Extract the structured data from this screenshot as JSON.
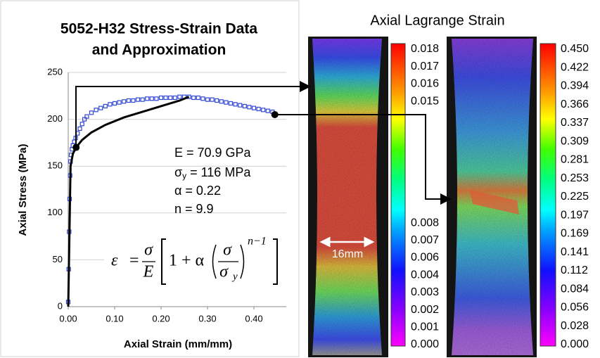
{
  "chart_data": {
    "type": "scatter",
    "title": [
      "5052-H32 Stress-Strain Data",
      "and Approximation"
    ],
    "x_label": "Axial Strain (mm/mm)",
    "y_label": "Axial Stress (MPa)",
    "xlim": [
      0,
      0.47
    ],
    "ylim": [
      0,
      250
    ],
    "xticks": [
      {
        "value": 0,
        "label": "0.00"
      },
      {
        "value": 0.1,
        "label": "0.10"
      },
      {
        "value": 0.2,
        "label": "0.20"
      },
      {
        "value": 0.3,
        "label": "0.30"
      },
      {
        "value": 0.4,
        "label": "0.40"
      }
    ],
    "yticks": [
      0,
      50,
      100,
      150,
      200,
      250
    ],
    "grid": true,
    "series": [
      {
        "kind": "markers",
        "color": "#2f45d6",
        "x": [
          0.0,
          0.001,
          0.002,
          0.003,
          0.004,
          0.005,
          0.006,
          0.008,
          0.01,
          0.013,
          0.016,
          0.02,
          0.025,
          0.03,
          0.035,
          0.04,
          0.05,
          0.06,
          0.07,
          0.08,
          0.09,
          0.1,
          0.11,
          0.12,
          0.13,
          0.14,
          0.15,
          0.16,
          0.17,
          0.18,
          0.19,
          0.2,
          0.21,
          0.22,
          0.23,
          0.24,
          0.25,
          0.26,
          0.27,
          0.28,
          0.29,
          0.3,
          0.31,
          0.32,
          0.33,
          0.34,
          0.35,
          0.36,
          0.37,
          0.38,
          0.39,
          0.4,
          0.41,
          0.42,
          0.43,
          0.44
        ],
        "values": [
          5,
          40,
          80,
          115,
          140,
          155,
          162,
          168,
          172,
          176,
          180,
          185,
          190,
          195,
          200,
          203,
          207,
          210,
          212,
          214,
          216,
          217,
          218,
          219,
          220,
          220,
          221,
          221,
          222,
          222,
          222,
          223,
          223,
          223,
          223,
          224,
          224,
          224,
          223,
          223,
          222,
          221,
          221,
          220,
          219,
          218,
          217,
          216,
          215,
          214,
          213,
          212,
          211,
          210,
          209,
          208
        ]
      },
      {
        "kind": "line",
        "color": "#000000",
        "x": [
          0,
          0.005,
          0.01,
          0.017,
          0.03,
          0.05,
          0.08,
          0.12,
          0.16,
          0.2,
          0.24,
          0.26
        ],
        "values": [
          0,
          150,
          163,
          170,
          178,
          186,
          194,
          202,
          208,
          214,
          220,
          224
        ]
      },
      {
        "kind": "dots",
        "color": "#000000",
        "x": [
          0.017,
          0.445
        ],
        "values": [
          170,
          205
        ]
      }
    ],
    "annotations": {
      "modulus": "E = 70.9 GPa",
      "yield": [
        "σ",
        "y",
        " = 116 MPa"
      ],
      "alpha": "α = 0.22",
      "n": "n = 9.9",
      "equation": [
        "ε",
        "=",
        "σ",
        "E",
        "1 + α",
        "σ",
        "σ",
        "y",
        "n−1"
      ]
    }
  },
  "images": {
    "title": "Axial Lagrange Strain",
    "width_label": "16mm",
    "colorbar_left": [
      "0.018",
      "0.017",
      "0.016",
      "0.015",
      null,
      null,
      null,
      null,
      null,
      null,
      "0.008",
      "0.007",
      "0.006",
      "0.004",
      "0.003",
      "0.002",
      "0.001",
      "0.000"
    ],
    "colorbar_right": [
      "0.450",
      "0.422",
      "0.394",
      "0.366",
      "0.337",
      "0.309",
      "0.281",
      "0.253",
      "0.225",
      "0.197",
      "0.169",
      "0.141",
      "0.112",
      "0.084",
      "0.056",
      "0.028",
      "0.000"
    ]
  }
}
